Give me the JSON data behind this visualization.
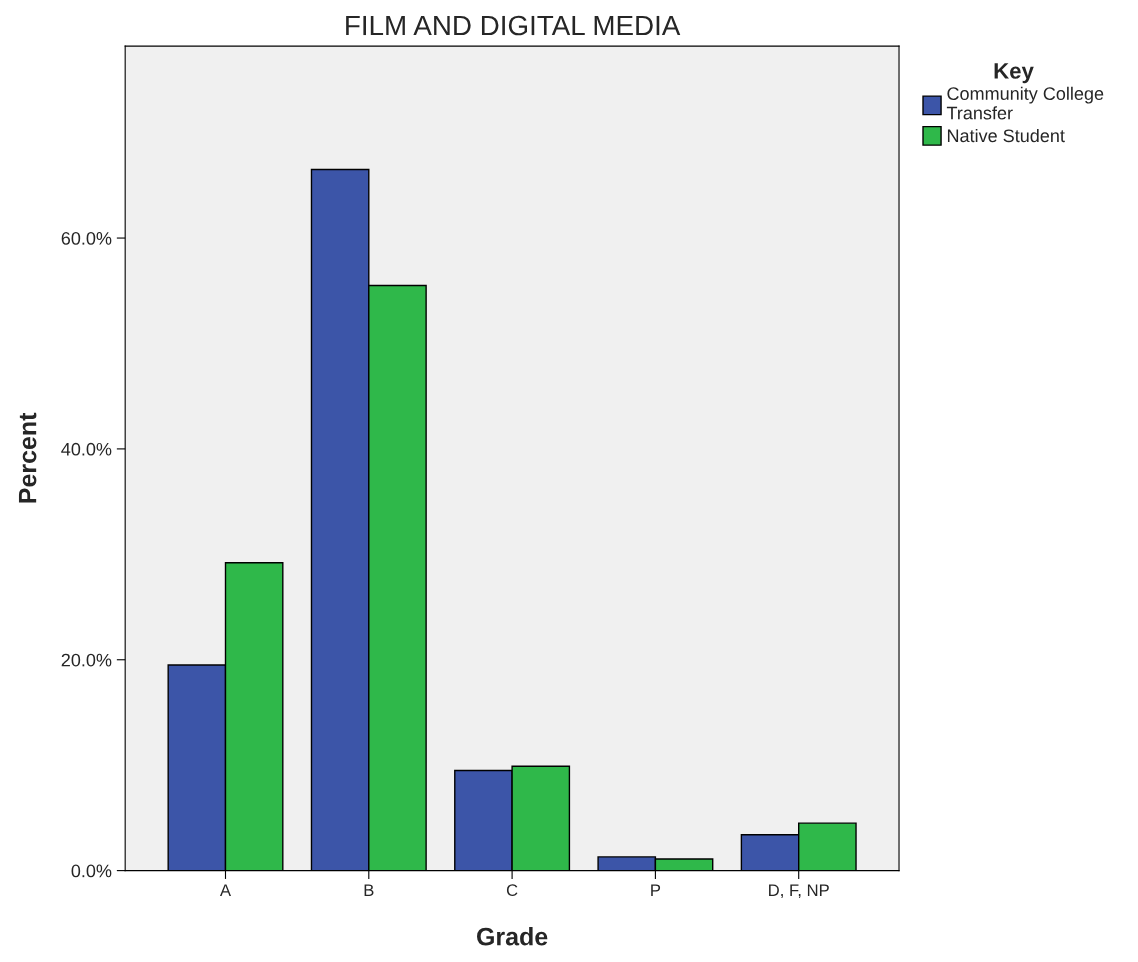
{
  "chart_data": {
    "type": "bar",
    "title": "FILM AND DIGITAL MEDIA",
    "xlabel": "Grade",
    "ylabel": "Percent",
    "legend_title": "Key",
    "categories": [
      "A",
      "B",
      "C",
      "P",
      "D, F, NP"
    ],
    "series": [
      {
        "name": "Community College\nTransfer",
        "color": "#3c55a8",
        "values": [
          19.5,
          66.5,
          9.5,
          1.3,
          3.4
        ]
      },
      {
        "name": "Native Student",
        "color": "#2fb84a",
        "values": [
          29.2,
          55.5,
          9.9,
          1.1,
          4.5
        ]
      }
    ],
    "ylim": [
      0,
      78.2
    ],
    "yticks": [
      {
        "value": 0,
        "label": "0.0%"
      },
      {
        "value": 20,
        "label": "20.0%"
      },
      {
        "value": 40,
        "label": "40.0%"
      },
      {
        "value": 60,
        "label": "60.0%"
      }
    ],
    "grid": false,
    "legend": "top right"
  }
}
